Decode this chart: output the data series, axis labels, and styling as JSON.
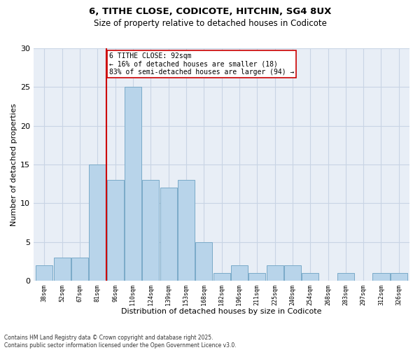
{
  "title1": "6, TITHE CLOSE, CODICOTE, HITCHIN, SG4 8UX",
  "title2": "Size of property relative to detached houses in Codicote",
  "xlabel": "Distribution of detached houses by size in Codicote",
  "ylabel": "Number of detached properties",
  "bar_values": [
    2,
    3,
    3,
    15,
    13,
    25,
    13,
    12,
    13,
    5,
    1,
    2,
    1,
    2,
    2,
    1,
    0,
    1,
    0,
    1,
    1
  ],
  "bar_color": "#b8d4ea",
  "bar_edge_color": "#7aaac8",
  "grid_color": "#c8d4e4",
  "background_color": "#e8eef6",
  "ref_line_x": 3.5,
  "annotation_text": "6 TITHE CLOSE: 92sqm\n← 16% of detached houses are smaller (18)\n83% of semi-detached houses are larger (94) →",
  "annotation_box_color": "#cc0000",
  "ylim": [
    0,
    30
  ],
  "yticks": [
    0,
    5,
    10,
    15,
    20,
    25,
    30
  ],
  "footer": "Contains HM Land Registry data © Crown copyright and database right 2025.\nContains public sector information licensed under the Open Government Licence v3.0.",
  "tick_labels": [
    "38sqm",
    "52sqm",
    "67sqm",
    "81sqm",
    "96sqm",
    "110sqm",
    "124sqm",
    "139sqm",
    "153sqm",
    "168sqm",
    "182sqm",
    "196sqm",
    "211sqm",
    "225sqm",
    "240sqm",
    "254sqm",
    "268sqm",
    "283sqm",
    "297sqm",
    "312sqm",
    "326sqm"
  ]
}
